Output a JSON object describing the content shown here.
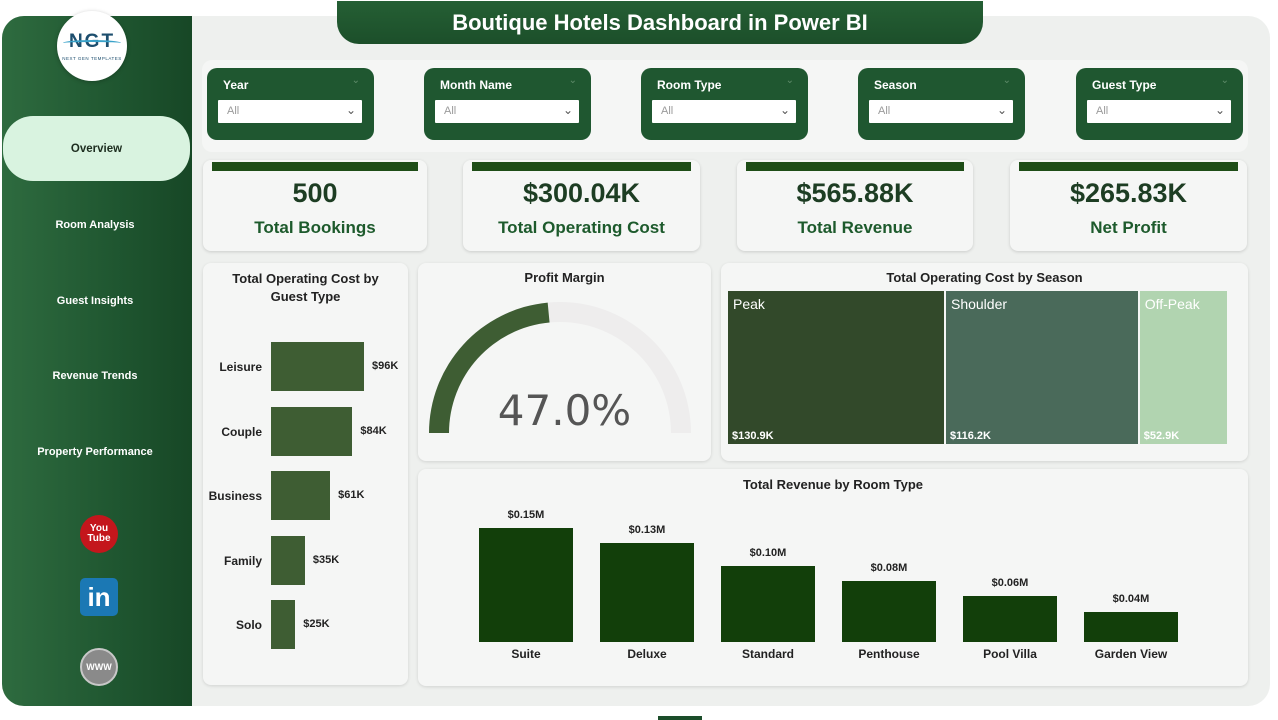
{
  "app": {
    "title": "Boutique Hotels Dashboard in Power BI"
  },
  "logo": {
    "mark": "NGT",
    "sub": "NEXT GEN TEMPLATES"
  },
  "nav": {
    "items": [
      "Overview",
      "Room Analysis",
      "Guest Insights",
      "Revenue Trends",
      "Property Performance"
    ],
    "active": "Overview"
  },
  "social": {
    "youtube_top": "You",
    "youtube_bottom": "Tube",
    "linkedin": "in",
    "web": "WWW"
  },
  "filters": [
    {
      "label": "Year",
      "value": "All"
    },
    {
      "label": "Month Name",
      "value": "All"
    },
    {
      "label": "Room Type",
      "value": "All"
    },
    {
      "label": "Season",
      "value": "All"
    },
    {
      "label": "Guest Type",
      "value": "All"
    }
  ],
  "kpis": [
    {
      "value": "500",
      "label": "Total Bookings"
    },
    {
      "value": "$300.04K",
      "label": "Total Operating Cost"
    },
    {
      "value": "$565.88K",
      "label": "Total Revenue"
    },
    {
      "value": "$265.83K",
      "label": "Net Profit"
    }
  ],
  "colors": {
    "brand_dark": "#1f5730",
    "bar_dark": "#123f0a",
    "hbar": "#3e5d33",
    "kpi_bar": "#1e4d17",
    "peak": "#32492a",
    "shoulder": "#4a6a5a",
    "offpeak": "#b1d4b0",
    "gauge_fill": "#3e5d33",
    "gauge_track": "#eeeded"
  },
  "chart_data": [
    {
      "type": "bar",
      "orientation": "horizontal",
      "title": "Total Operating Cost by Guest Type",
      "categories": [
        "Leisure",
        "Couple",
        "Business",
        "Family",
        "Solo"
      ],
      "values": [
        96,
        84,
        61,
        35,
        25
      ],
      "labels": [
        "$96K",
        "$84K",
        "$61K",
        "$35K",
        "$25K"
      ],
      "unit": "K$"
    },
    {
      "type": "gauge",
      "title": "Profit Margin",
      "value": 47.0,
      "display": "47.0%",
      "min": 0,
      "max": 100
    },
    {
      "type": "treemap",
      "title": "Total Operating Cost by Season",
      "categories": [
        "Peak",
        "Shoulder",
        "Off-Peak"
      ],
      "values": [
        130.9,
        116.2,
        52.9
      ],
      "labels": [
        "$130.9K",
        "$116.2K",
        "$52.9K"
      ]
    },
    {
      "type": "bar",
      "title": "Total Revenue by Room Type",
      "categories": [
        "Suite",
        "Deluxe",
        "Standard",
        "Penthouse",
        "Pool Villa",
        "Garden View"
      ],
      "values": [
        0.15,
        0.13,
        0.1,
        0.08,
        0.06,
        0.04
      ],
      "labels": [
        "$0.15M",
        "$0.13M",
        "$0.10M",
        "$0.08M",
        "$0.06M",
        "$0.04M"
      ],
      "ylim": [
        0,
        0.15
      ]
    }
  ]
}
